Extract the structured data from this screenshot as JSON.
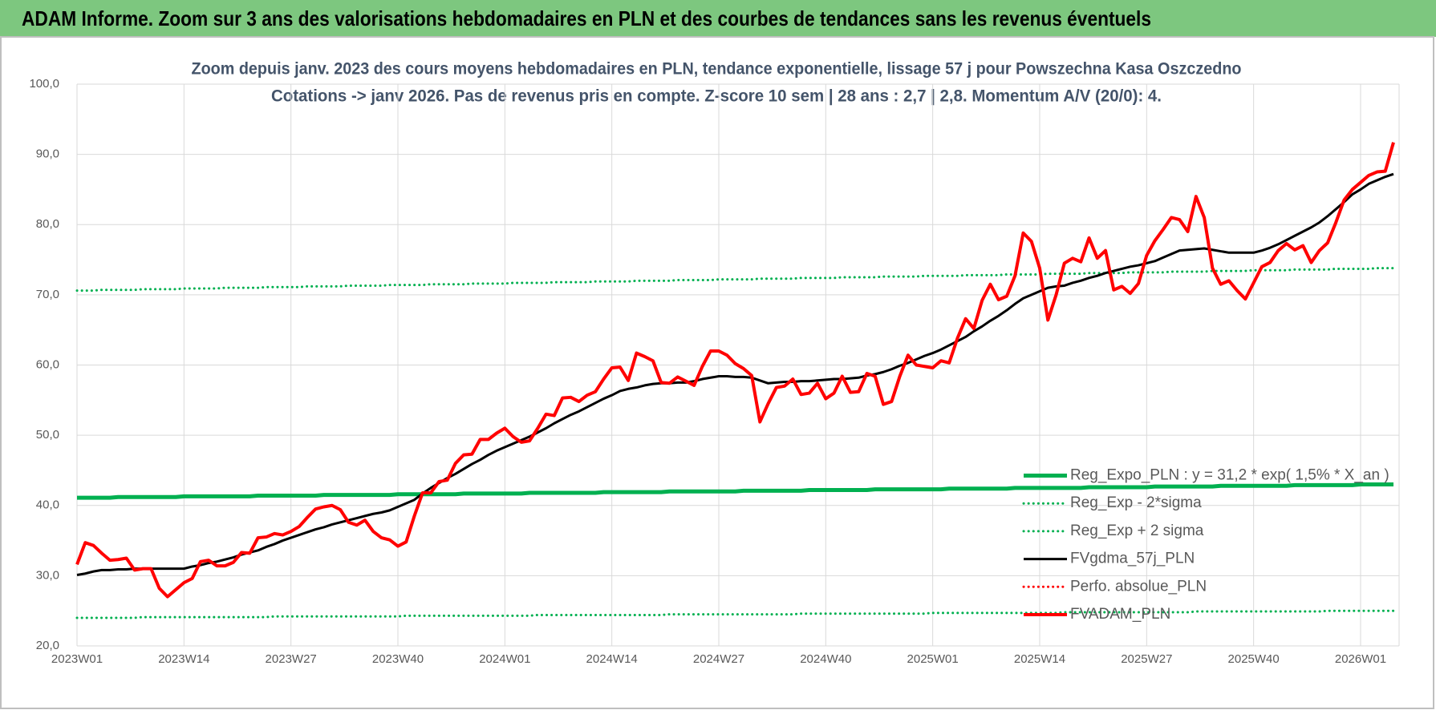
{
  "chart_data": {
    "type": "line",
    "title": "ADAM Informe. Zoom sur 3 ans des valorisations hebdomadaires en PLN et des courbes de tendances sans les revenus éventuels",
    "subtitle": [
      "Zoom depuis janv. 2023 des cours moyens hebdomadaires en PLN, tendance exponentielle, lissage 57 j pour Powszechna Kasa Oszczedno",
      "Cotations -> janv 2026. Pas de revenus pris en compte. Z-score 10 sem | 28 ans : 2,7 | 2,8. Momentum A/V (20/0): 4."
    ],
    "categories": [
      "2023W01",
      null,
      null,
      null,
      null,
      null,
      null,
      null,
      null,
      null,
      null,
      null,
      null,
      "2023W14",
      null,
      null,
      null,
      null,
      null,
      null,
      null,
      null,
      null,
      null,
      null,
      null,
      "2023W27",
      null,
      null,
      null,
      null,
      null,
      null,
      null,
      null,
      null,
      null,
      null,
      null,
      "2023W40",
      null,
      null,
      null,
      null,
      null,
      null,
      null,
      null,
      null,
      null,
      null,
      null,
      "2024W01",
      null,
      null,
      null,
      null,
      null,
      null,
      null,
      null,
      null,
      null,
      null,
      null,
      "2024W14",
      null,
      null,
      null,
      null,
      null,
      null,
      null,
      null,
      null,
      null,
      null,
      null,
      "2024W27",
      null,
      null,
      null,
      null,
      null,
      null,
      null,
      null,
      null,
      null,
      null,
      null,
      "2024W40",
      null,
      null,
      null,
      null,
      null,
      null,
      null,
      null,
      null,
      null,
      null,
      null,
      "2025W01",
      null,
      null,
      null,
      null,
      null,
      null,
      null,
      null,
      null,
      null,
      null,
      null,
      "2025W14",
      null,
      null,
      null,
      null,
      null,
      null,
      null,
      null,
      null,
      null,
      null,
      null,
      "2025W27",
      null,
      null,
      null,
      null,
      null,
      null,
      null,
      null,
      null,
      null,
      null,
      null,
      "2025W40",
      null,
      null,
      null,
      null,
      null,
      null,
      null,
      null,
      null,
      null,
      null,
      null,
      "2026W01",
      null,
      null,
      null,
      null
    ],
    "ylim": [
      20,
      100
    ],
    "yticks": [
      {
        "value": 20,
        "label": "20,0"
      },
      {
        "value": 30,
        "label": "30,0"
      },
      {
        "value": 40,
        "label": "40,0"
      },
      {
        "value": 50,
        "label": "50,0"
      },
      {
        "value": 60,
        "label": "60,0"
      },
      {
        "value": 70,
        "label": "70,0"
      },
      {
        "value": 80,
        "label": "80,0"
      },
      {
        "value": 90,
        "label": "90,0"
      },
      {
        "value": 100,
        "label": "100,0"
      }
    ],
    "grid": true,
    "legend": "lower right",
    "series": [
      {
        "name": "Reg_Expo_PLN : y = 31,2 * exp( 1,5% * X_an )",
        "color": "#00b050",
        "style": "solid",
        "width": 5,
        "values": [
          41.1,
          41.1,
          41.1,
          41.1,
          41.1,
          41.2,
          41.2,
          41.2,
          41.2,
          41.2,
          41.2,
          41.2,
          41.2,
          41.3,
          41.3,
          41.3,
          41.3,
          41.3,
          41.3,
          41.3,
          41.3,
          41.3,
          41.4,
          41.4,
          41.4,
          41.4,
          41.4,
          41.4,
          41.4,
          41.4,
          41.5,
          41.5,
          41.5,
          41.5,
          41.5,
          41.5,
          41.5,
          41.5,
          41.5,
          41.6,
          41.6,
          41.6,
          41.6,
          41.6,
          41.6,
          41.6,
          41.6,
          41.7,
          41.7,
          41.7,
          41.7,
          41.7,
          41.7,
          41.7,
          41.7,
          41.8,
          41.8,
          41.8,
          41.8,
          41.8,
          41.8,
          41.8,
          41.8,
          41.8,
          41.9,
          41.9,
          41.9,
          41.9,
          41.9,
          41.9,
          41.9,
          41.9,
          42.0,
          42.0,
          42.0,
          42.0,
          42.0,
          42.0,
          42.0,
          42.0,
          42.0,
          42.1,
          42.1,
          42.1,
          42.1,
          42.1,
          42.1,
          42.1,
          42.1,
          42.2,
          42.2,
          42.2,
          42.2,
          42.2,
          42.2,
          42.2,
          42.2,
          42.3,
          42.3,
          42.3,
          42.3,
          42.3,
          42.3,
          42.3,
          42.3,
          42.3,
          42.4,
          42.4,
          42.4,
          42.4,
          42.4,
          42.4,
          42.4,
          42.4,
          42.5,
          42.5,
          42.5,
          42.5,
          42.5,
          42.5,
          42.5,
          42.5,
          42.5,
          42.6,
          42.6,
          42.6,
          42.6,
          42.6,
          42.6,
          42.6,
          42.6,
          42.7,
          42.7,
          42.7,
          42.7,
          42.7,
          42.7,
          42.7,
          42.7,
          42.8,
          42.8,
          42.8,
          42.8,
          42.8,
          42.8,
          42.8,
          42.8,
          42.8,
          42.9,
          42.9,
          42.9,
          42.9,
          42.9,
          42.9,
          42.9,
          42.9,
          43.0,
          43.0,
          43.0,
          43.0,
          43.0
        ]
      },
      {
        "name": "Reg_Exp - 2*sigma",
        "color": "#00b050",
        "style": "dotted",
        "width": 3,
        "values": [
          24.0,
          24.0,
          24.0,
          24.0,
          24.0,
          24.0,
          24.0,
          24.0,
          24.1,
          24.1,
          24.1,
          24.1,
          24.1,
          24.1,
          24.1,
          24.1,
          24.1,
          24.1,
          24.1,
          24.1,
          24.1,
          24.1,
          24.1,
          24.1,
          24.2,
          24.2,
          24.2,
          24.2,
          24.2,
          24.2,
          24.2,
          24.2,
          24.2,
          24.2,
          24.2,
          24.2,
          24.2,
          24.2,
          24.2,
          24.2,
          24.3,
          24.3,
          24.3,
          24.3,
          24.3,
          24.3,
          24.3,
          24.3,
          24.3,
          24.3,
          24.3,
          24.3,
          24.3,
          24.3,
          24.3,
          24.3,
          24.4,
          24.4,
          24.4,
          24.4,
          24.4,
          24.4,
          24.4,
          24.4,
          24.4,
          24.4,
          24.4,
          24.4,
          24.4,
          24.4,
          24.4,
          24.4,
          24.5,
          24.5,
          24.5,
          24.5,
          24.5,
          24.5,
          24.5,
          24.5,
          24.5,
          24.5,
          24.5,
          24.5,
          24.5,
          24.5,
          24.5,
          24.5,
          24.6,
          24.6,
          24.6,
          24.6,
          24.6,
          24.6,
          24.6,
          24.6,
          24.6,
          24.6,
          24.6,
          24.6,
          24.6,
          24.6,
          24.6,
          24.6,
          24.7,
          24.7,
          24.7,
          24.7,
          24.7,
          24.7,
          24.7,
          24.7,
          24.7,
          24.7,
          24.7,
          24.7,
          24.7,
          24.7,
          24.7,
          24.7,
          24.8,
          24.8,
          24.8,
          24.8,
          24.8,
          24.8,
          24.8,
          24.8,
          24.8,
          24.8,
          24.8,
          24.8,
          24.8,
          24.8,
          24.8,
          24.8,
          24.9,
          24.9,
          24.9,
          24.9,
          24.9,
          24.9,
          24.9,
          24.9,
          24.9,
          24.9,
          24.9,
          24.9,
          24.9,
          24.9,
          24.9,
          24.9,
          25.0,
          25.0,
          25.0,
          25.0,
          25.0,
          25.0,
          25.0,
          25.0,
          25.0
        ]
      },
      {
        "name": "Reg_Exp + 2 sigma",
        "color": "#00b050",
        "style": "dotted",
        "width": 3,
        "values": [
          70.6,
          70.6,
          70.6,
          70.7,
          70.7,
          70.7,
          70.7,
          70.7,
          70.8,
          70.8,
          70.8,
          70.8,
          70.8,
          70.9,
          70.9,
          70.9,
          70.9,
          70.9,
          71.0,
          71.0,
          71.0,
          71.0,
          71.0,
          71.1,
          71.1,
          71.1,
          71.1,
          71.1,
          71.2,
          71.2,
          71.2,
          71.2,
          71.2,
          71.3,
          71.3,
          71.3,
          71.3,
          71.3,
          71.4,
          71.4,
          71.4,
          71.4,
          71.4,
          71.5,
          71.5,
          71.5,
          71.5,
          71.5,
          71.6,
          71.6,
          71.6,
          71.6,
          71.6,
          71.7,
          71.7,
          71.7,
          71.7,
          71.7,
          71.8,
          71.8,
          71.8,
          71.8,
          71.8,
          71.9,
          71.9,
          71.9,
          71.9,
          71.9,
          72.0,
          72.0,
          72.0,
          72.0,
          72.0,
          72.1,
          72.1,
          72.1,
          72.1,
          72.1,
          72.2,
          72.2,
          72.2,
          72.2,
          72.2,
          72.3,
          72.3,
          72.3,
          72.3,
          72.3,
          72.4,
          72.4,
          72.4,
          72.4,
          72.4,
          72.5,
          72.5,
          72.5,
          72.5,
          72.5,
          72.6,
          72.6,
          72.6,
          72.6,
          72.6,
          72.7,
          72.7,
          72.7,
          72.7,
          72.7,
          72.8,
          72.8,
          72.8,
          72.8,
          72.8,
          72.9,
          72.9,
          72.9,
          72.9,
          72.9,
          73.0,
          73.0,
          73.0,
          73.0,
          73.0,
          73.1,
          73.1,
          73.1,
          73.1,
          73.1,
          73.2,
          73.2,
          73.2,
          73.2,
          73.2,
          73.3,
          73.3,
          73.3,
          73.3,
          73.3,
          73.4,
          73.4,
          73.4,
          73.4,
          73.4,
          73.5,
          73.5,
          73.5,
          73.5,
          73.5,
          73.6,
          73.6,
          73.6,
          73.6,
          73.6,
          73.7,
          73.7,
          73.7,
          73.7,
          73.7,
          73.8,
          73.8,
          73.8
        ]
      },
      {
        "name": "FVgdma_57j_PLN",
        "color": "#000000",
        "style": "solid",
        "width": 3,
        "values": [
          30.1,
          30.3,
          30.6,
          30.8,
          30.8,
          30.9,
          30.9,
          31.0,
          31.0,
          31.0,
          31.0,
          31.0,
          31.0,
          31.0,
          31.3,
          31.5,
          31.8,
          32.0,
          32.3,
          32.6,
          33.0,
          33.3,
          33.6,
          34.1,
          34.5,
          35.0,
          35.4,
          35.8,
          36.2,
          36.6,
          36.9,
          37.3,
          37.6,
          37.9,
          38.2,
          38.5,
          38.8,
          39.0,
          39.3,
          39.8,
          40.3,
          40.8,
          41.7,
          42.5,
          43.2,
          43.9,
          44.5,
          45.2,
          45.9,
          46.5,
          47.2,
          47.8,
          48.3,
          48.8,
          49.3,
          49.8,
          50.4,
          51.0,
          51.7,
          52.3,
          52.9,
          53.4,
          54.0,
          54.6,
          55.2,
          55.7,
          56.3,
          56.6,
          56.8,
          57.1,
          57.3,
          57.4,
          57.4,
          57.5,
          57.5,
          57.7,
          58.0,
          58.2,
          58.4,
          58.4,
          58.3,
          58.3,
          58.2,
          57.8,
          57.4,
          57.5,
          57.6,
          57.6,
          57.7,
          57.7,
          57.8,
          57.9,
          58.0,
          58.0,
          58.1,
          58.2,
          58.5,
          58.7,
          59.0,
          59.4,
          59.9,
          60.3,
          60.8,
          61.3,
          61.7,
          62.2,
          62.8,
          63.4,
          64.0,
          64.8,
          65.5,
          66.3,
          67.0,
          67.8,
          68.7,
          69.5,
          70.0,
          70.5,
          71.0,
          71.2,
          71.3,
          71.7,
          72.0,
          72.4,
          72.7,
          73.1,
          73.4,
          73.7,
          74.0,
          74.2,
          74.5,
          74.8,
          75.3,
          75.8,
          76.3,
          76.4,
          76.5,
          76.6,
          76.4,
          76.2,
          76.0,
          76.0,
          76.0,
          76.0,
          76.3,
          76.7,
          77.2,
          77.8,
          78.4,
          79.0,
          79.6,
          80.3,
          81.2,
          82.2,
          83.2,
          84.3,
          85.0,
          85.8,
          86.3,
          86.8,
          87.2
        ]
      },
      {
        "name": "Perfo. absolue_PLN",
        "color": "#ff0000",
        "style": "dotted",
        "width": 3,
        "values": [
          null,
          null,
          null,
          null,
          null,
          null,
          null,
          null,
          null,
          null,
          null,
          null,
          null,
          null,
          null,
          null,
          null,
          null,
          null,
          null,
          null,
          null,
          null,
          null,
          null,
          null,
          null,
          null,
          null,
          null,
          null,
          null,
          null,
          null,
          null,
          null,
          null,
          null,
          null,
          null,
          null,
          null,
          null,
          null,
          null,
          null,
          null,
          null,
          null,
          null,
          null,
          null,
          null,
          null,
          null,
          null,
          null,
          null,
          null,
          null,
          null,
          null,
          null,
          null,
          null,
          null,
          null,
          null,
          null,
          null,
          null,
          null,
          null,
          null,
          null,
          null,
          null,
          null,
          null,
          null,
          null,
          null,
          null,
          null,
          null,
          null,
          null,
          null,
          null,
          null,
          null,
          null,
          null,
          null,
          null,
          null,
          null,
          null,
          null,
          null,
          null,
          null,
          null,
          null,
          null,
          null,
          null,
          null,
          null,
          null,
          null,
          null,
          null,
          null,
          null,
          null,
          null,
          null,
          null,
          null,
          null,
          null,
          null,
          null,
          null,
          null,
          null,
          null,
          null,
          null,
          null,
          null,
          null,
          null,
          null,
          null,
          null,
          null,
          null,
          null,
          null,
          null,
          null,
          null,
          null,
          null,
          null,
          null,
          null,
          null,
          null,
          null,
          null,
          null,
          null,
          null,
          null,
          null,
          null,
          null,
          null
        ]
      },
      {
        "name": "FVADAM_PLN",
        "color": "#ff0000",
        "style": "solid",
        "width": 4,
        "values": [
          31.6,
          34.7,
          34.3,
          33.2,
          32.2,
          32.3,
          32.5,
          30.8,
          31.0,
          31.0,
          28.2,
          27.0,
          28.0,
          29.0,
          29.6,
          32.0,
          32.2,
          31.4,
          31.4,
          31.9,
          33.3,
          33.2,
          35.4,
          35.5,
          36.0,
          35.8,
          36.3,
          37.0,
          38.3,
          39.5,
          39.8,
          40.0,
          39.4,
          37.6,
          37.2,
          37.9,
          36.3,
          35.4,
          35.1,
          34.2,
          34.8,
          38.5,
          41.8,
          41.8,
          43.4,
          43.6,
          46.0,
          47.2,
          47.3,
          49.4,
          49.4,
          50.3,
          51.0,
          49.8,
          49.0,
          49.2,
          51.0,
          53.0,
          52.8,
          55.3,
          55.4,
          54.8,
          55.7,
          56.2,
          58.0,
          59.6,
          59.7,
          57.8,
          61.7,
          61.2,
          60.6,
          57.5,
          57.4,
          58.3,
          57.7,
          57.1,
          59.8,
          62.0,
          62.0,
          61.4,
          60.2,
          59.5,
          58.5,
          51.9,
          54.5,
          56.8,
          57.0,
          58.0,
          55.8,
          56.0,
          57.4,
          55.2,
          56.0,
          58.4,
          56.1,
          56.2,
          58.8,
          58.4,
          54.4,
          54.8,
          58.4,
          61.4,
          60.0,
          59.8,
          59.6,
          60.6,
          60.3,
          63.8,
          66.6,
          65.2,
          69.2,
          71.5,
          69.3,
          69.8,
          72.7,
          78.8,
          77.6,
          73.8,
          66.4,
          70.0,
          74.5,
          75.2,
          74.7,
          78.1,
          75.2,
          76.3,
          70.7,
          71.2,
          70.2,
          71.6,
          75.6,
          77.7,
          79.3,
          81.0,
          80.7,
          79.0,
          84.0,
          81.0,
          73.8,
          71.5,
          72.0,
          70.6,
          69.4,
          71.7,
          74.0,
          74.6,
          76.3,
          77.3,
          76.4,
          77.0,
          74.6,
          76.3,
          77.4,
          80.3,
          83.5,
          85.0,
          86.0,
          87.0,
          87.5,
          87.6,
          91.7
        ]
      }
    ]
  }
}
